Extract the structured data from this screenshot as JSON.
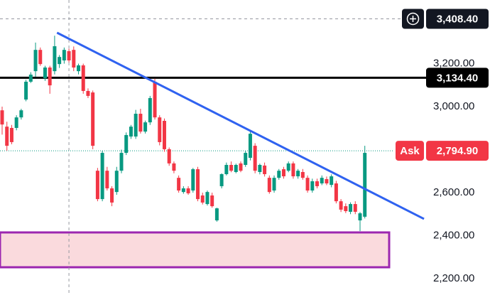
{
  "chart_data": {
    "type": "candlestick",
    "up_color": "#089981",
    "down_color": "#f23645",
    "open": [
      2983,
      2907,
      2901,
      2901,
      2950,
      3033,
      3116,
      3165,
      3264,
      3132,
      3182,
      3165,
      3198,
      3215,
      3258,
      3264,
      3165,
      3192,
      3073,
      3066,
      2702,
      2570,
      2702,
      2620,
      2603,
      2702,
      2785,
      2861,
      2861,
      2967,
      2884,
      2927,
      3116,
      2950,
      2934,
      2802,
      2736,
      2669,
      2603,
      2620,
      2610,
      2709,
      2587,
      2547,
      2587,
      2471,
      2630,
      2686,
      2729,
      2696,
      2736,
      2729,
      2762,
      2818,
      2696,
      2726,
      2669,
      2610,
      2669,
      2709,
      2702,
      2736,
      2676,
      2696,
      2669,
      2610,
      2653,
      2643,
      2663,
      2636,
      2643,
      2560,
      2537,
      2511,
      2547,
      2471,
      2488
    ],
    "high": [
      3000,
      2930,
      2915,
      2960,
      2990,
      3125,
      3160,
      3298,
      3275,
      3190,
      3190,
      3330,
      3240,
      3275,
      3270,
      3280,
      3200,
      3200,
      3085,
      3075,
      2715,
      2795,
      2720,
      2630,
      2720,
      2800,
      2880,
      2915,
      2985,
      2990,
      2935,
      3050,
      3130,
      2960,
      2945,
      2810,
      2745,
      2680,
      2630,
      2630,
      2715,
      2720,
      2600,
      2610,
      2600,
      2530,
      2690,
      2740,
      2745,
      2735,
      2745,
      2795,
      2885,
      2830,
      2735,
      2740,
      2680,
      2680,
      2710,
      2720,
      2745,
      2745,
      2710,
      2710,
      2680,
      2665,
      2665,
      2680,
      2675,
      2685,
      2655,
      2570,
      2550,
      2555,
      2560,
      2510,
      2818
    ],
    "low": [
      2870,
      2795,
      2825,
      2890,
      2940,
      3025,
      3110,
      3139,
      3190,
      3120,
      3060,
      3150,
      3180,
      3200,
      3205,
      3165,
      3150,
      3060,
      3040,
      2802,
      2560,
      2560,
      2610,
      2537,
      2590,
      2690,
      2775,
      2850,
      2850,
      2875,
      2875,
      2915,
      2940,
      2820,
      2790,
      2725,
      2690,
      2600,
      2595,
      2590,
      2600,
      2560,
      2545,
      2540,
      2530,
      2465,
      2620,
      2680,
      2695,
      2690,
      2695,
      2720,
      2750,
      2690,
      2685,
      2675,
      2595,
      2600,
      2660,
      2665,
      2695,
      2665,
      2665,
      2660,
      2600,
      2600,
      2620,
      2635,
      2635,
      2625,
      2550,
      2510,
      2505,
      2500,
      2500,
      2421,
      2480
    ],
    "close": [
      2917,
      2818,
      2835,
      2950,
      2983,
      3116,
      3149,
      3264,
      3198,
      3182,
      3099,
      3281,
      3231,
      3264,
      3215,
      3182,
      3192,
      3073,
      3050,
      2818,
      2570,
      2785,
      2620,
      2554,
      2702,
      2785,
      2868,
      2907,
      2967,
      2884,
      2927,
      3040,
      2950,
      2835,
      2802,
      2736,
      2702,
      2610,
      2620,
      2597,
      2709,
      2570,
      2554,
      2603,
      2537,
      2527,
      2686,
      2729,
      2702,
      2729,
      2702,
      2785,
      2874,
      2702,
      2729,
      2686,
      2603,
      2669,
      2702,
      2676,
      2736,
      2676,
      2702,
      2669,
      2610,
      2653,
      2630,
      2669,
      2643,
      2676,
      2560,
      2521,
      2514,
      2547,
      2511,
      2504,
      2785
    ],
    "ylim": [
      2124,
      3496
    ],
    "yticks": [
      {
        "value": 2200,
        "label": "2,200.00"
      },
      {
        "value": 2400,
        "label": "2,400.00"
      },
      {
        "value": 2600,
        "label": "2,600.00"
      },
      {
        "value": 3000,
        "label": "3,000.00"
      },
      {
        "value": 3200,
        "label": "3,200.00"
      }
    ],
    "hline": {
      "value": 3134.4,
      "label": "3,134.40",
      "color": "#000000"
    },
    "ask": {
      "name": "Ask",
      "value": 2794.9,
      "label": "2,794.90",
      "color": "#f23645",
      "line_color": "#089981"
    },
    "crosshair": {
      "x": 14,
      "value": 3408.4,
      "label": "3,408.40"
    },
    "trendline": {
      "x": [
        11.5,
        88.4
      ],
      "y": [
        3344,
        2478
      ],
      "color": "#2f62f0"
    },
    "zone": {
      "ymin": 2253,
      "ymax": 2415,
      "fill": "#fadadd",
      "stroke": "#9c27b0"
    }
  }
}
